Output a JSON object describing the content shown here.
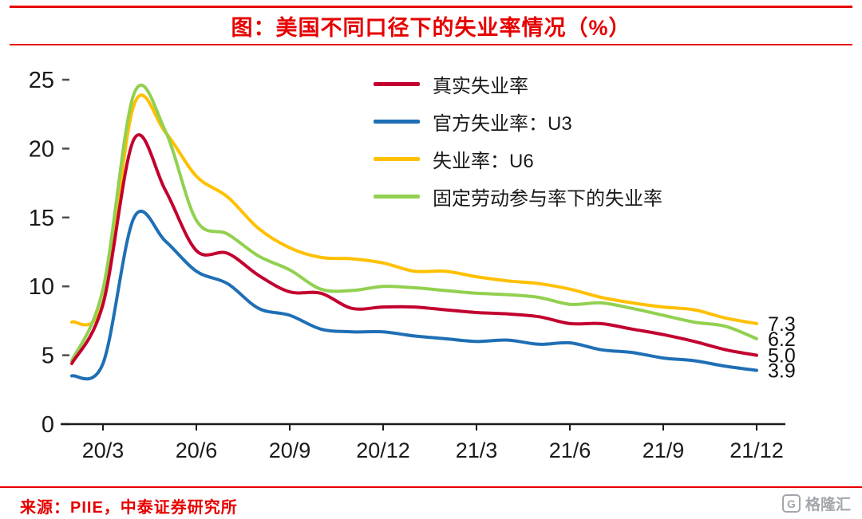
{
  "title": "图：美国不同口径下的失业率情况（%）",
  "source": "来源：PIIE，中泰证券研究所",
  "watermark": {
    "icon": "G",
    "text": "格隆汇"
  },
  "colors": {
    "accent_red": "#e60000",
    "axis": "#1a1a1a",
    "series_true": "#c2002f",
    "series_u3": "#1f6fb5",
    "series_u6": "#ffc000",
    "series_fixed_lfpr": "#92d050"
  },
  "chart_data": {
    "type": "line",
    "title": "图：美国不同口径下的失业率情况（%）",
    "x": [
      "20/2",
      "20/3",
      "20/4",
      "20/5",
      "20/6",
      "20/7",
      "20/8",
      "20/9",
      "20/10",
      "20/11",
      "20/12",
      "21/1",
      "21/2",
      "21/3",
      "21/4",
      "21/5",
      "21/6",
      "21/7",
      "21/8",
      "21/9",
      "21/10",
      "21/11",
      "21/12"
    ],
    "x_ticks": [
      {
        "label": "20/3",
        "index": 1
      },
      {
        "label": "20/6",
        "index": 4
      },
      {
        "label": "20/9",
        "index": 7
      },
      {
        "label": "20/12",
        "index": 10
      },
      {
        "label": "21/3",
        "index": 13
      },
      {
        "label": "21/6",
        "index": 16
      },
      {
        "label": "21/9",
        "index": 19
      },
      {
        "label": "21/12",
        "index": 22
      }
    ],
    "ylim": [
      0,
      25
    ],
    "yticks": [
      0,
      5,
      10,
      15,
      20,
      25
    ],
    "grid": false,
    "legend_position": "top-right-inside",
    "draw_order": [
      2,
      3,
      0,
      1
    ],
    "series": [
      {
        "name": "真实失业率",
        "color": "#c2002f",
        "end_label": "5.0",
        "values": [
          4.4,
          8.7,
          20.7,
          17.0,
          12.6,
          12.4,
          10.8,
          9.6,
          9.5,
          8.4,
          8.5,
          8.5,
          8.3,
          8.1,
          8.0,
          7.8,
          7.3,
          7.3,
          6.9,
          6.5,
          6.0,
          5.4,
          5.0
        ]
      },
      {
        "name": "官方失业率：U3",
        "color": "#1f6fb5",
        "end_label": "3.9",
        "values": [
          3.5,
          4.4,
          15.0,
          13.3,
          11.1,
          10.2,
          8.4,
          7.9,
          6.9,
          6.7,
          6.7,
          6.4,
          6.2,
          6.0,
          6.1,
          5.8,
          5.9,
          5.4,
          5.2,
          4.8,
          4.6,
          4.2,
          3.9
        ]
      },
      {
        "name": "失业率：U6",
        "color": "#ffc000",
        "end_label": "7.3",
        "values": [
          7.4,
          8.8,
          23.2,
          21.2,
          18.0,
          16.5,
          14.2,
          12.8,
          12.1,
          12.0,
          11.7,
          11.1,
          11.1,
          10.7,
          10.4,
          10.2,
          9.8,
          9.2,
          8.8,
          8.5,
          8.3,
          7.7,
          7.3
        ]
      },
      {
        "name": "固定劳动参与率下的失业率",
        "color": "#92d050",
        "end_label": "6.2",
        "values": [
          4.6,
          9.8,
          24.0,
          21.3,
          14.8,
          13.8,
          12.2,
          11.2,
          9.8,
          9.7,
          10.0,
          9.9,
          9.7,
          9.5,
          9.4,
          9.2,
          8.7,
          8.8,
          8.4,
          7.9,
          7.4,
          7.1,
          6.2
        ]
      }
    ]
  }
}
